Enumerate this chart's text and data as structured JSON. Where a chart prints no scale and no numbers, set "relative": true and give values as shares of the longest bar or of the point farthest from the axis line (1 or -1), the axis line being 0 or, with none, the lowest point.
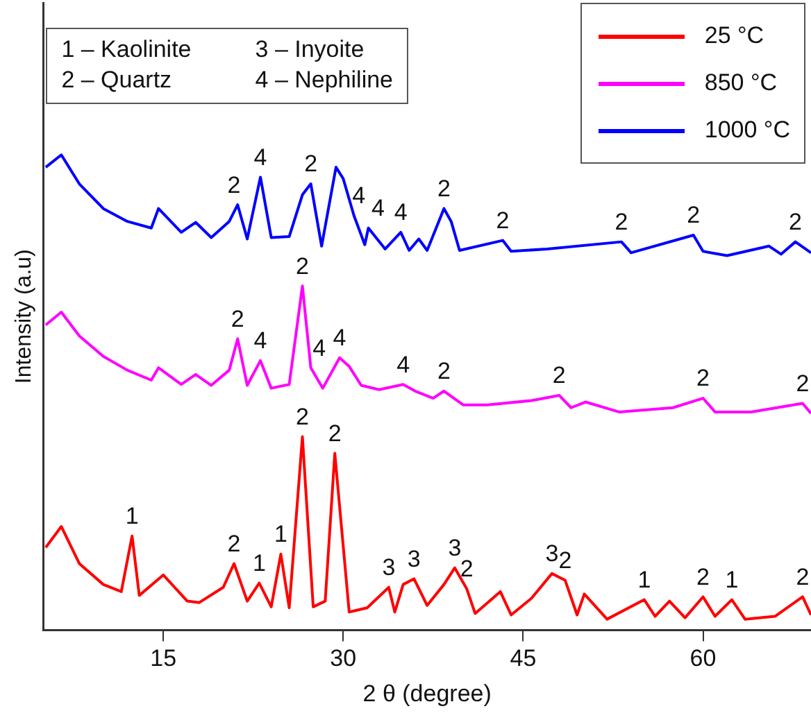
{
  "chart_data": {
    "type": "line",
    "xlabel": "2 θ (degree)",
    "ylabel": "Intensity (a.u)",
    "relative": true,
    "grid": false,
    "legend": "top right",
    "marker": "none",
    "xlim": [
      5,
      69
    ],
    "xticks": [
      15,
      30,
      45,
      60
    ],
    "series": [
      {
        "name": "25 °C",
        "color": "#ff0000",
        "x": [
          5.2,
          6.5,
          8,
          10,
          11.5,
          12.4,
          13,
          15,
          17,
          18,
          20,
          20.9,
          22,
          23,
          24,
          24.8,
          25.5,
          26.6,
          27.5,
          28.5,
          29.3,
          30.5,
          32,
          33.8,
          34.3,
          35,
          35.9,
          37,
          38.4,
          39.3,
          40.3,
          41,
          43.1,
          44,
          45.7,
          47.4,
          48.5,
          49.5,
          50.1,
          52,
          55.1,
          56,
          57.2,
          58.5,
          60,
          61,
          62.4,
          63.5,
          66,
          68.3,
          69
        ],
        "values": [
          0.174,
          0.218,
          0.14,
          0.096,
          0.081,
          0.198,
          0.073,
          0.116,
          0.061,
          0.058,
          0.09,
          0.14,
          0.061,
          0.099,
          0.049,
          0.16,
          0.047,
          0.407,
          0.049,
          0.061,
          0.372,
          0.038,
          0.047,
          0.09,
          0.038,
          0.096,
          0.108,
          0.052,
          0.096,
          0.131,
          0.087,
          0.035,
          0.081,
          0.032,
          0.067,
          0.119,
          0.105,
          0.032,
          0.076,
          0.023,
          0.064,
          0.029,
          0.061,
          0.026,
          0.07,
          0.029,
          0.064,
          0.023,
          0.029,
          0.07,
          0.032
        ]
      },
      {
        "name": "850 °C",
        "color": "#ff00ff",
        "x": [
          5.2,
          6.5,
          8,
          10,
          12,
          14,
          14.6,
          16.5,
          17.7,
          19,
          20.5,
          21.2,
          22,
          23.1,
          24,
          25.5,
          26.6,
          27.3,
          28.3,
          29.7,
          30.5,
          31.5,
          33,
          35,
          36,
          37.5,
          38.4,
          40,
          42,
          45.7,
          48,
          49,
          50.2,
          53,
          57.5,
          60,
          61,
          64,
          68.3,
          69
        ],
        "values": [
          0.642,
          0.669,
          0.619,
          0.576,
          0.547,
          0.526,
          0.552,
          0.517,
          0.538,
          0.515,
          0.547,
          0.613,
          0.515,
          0.567,
          0.509,
          0.517,
          0.724,
          0.552,
          0.509,
          0.573,
          0.555,
          0.515,
          0.506,
          0.517,
          0.503,
          0.488,
          0.503,
          0.474,
          0.474,
          0.483,
          0.494,
          0.468,
          0.48,
          0.459,
          0.468,
          0.488,
          0.459,
          0.459,
          0.477,
          0.456
        ]
      },
      {
        "name": "1000 °C",
        "color": "#0000ff",
        "x": [
          5.2,
          6.5,
          8,
          10,
          12,
          14,
          14.6,
          16.5,
          17.7,
          19,
          20.5,
          21.2,
          22,
          23.1,
          24,
          25.5,
          26.6,
          27.3,
          28.2,
          29.4,
          30,
          30.9,
          31.8,
          32.1,
          33.5,
          34.8,
          35.5,
          36.3,
          37,
          38.4,
          39,
          39.7,
          43.3,
          44,
          47,
          53.2,
          54,
          59.2,
          60,
          62,
          65.5,
          66.5,
          67.7,
          69
        ],
        "values": [
          0.974,
          1,
          0.939,
          0.887,
          0.86,
          0.846,
          0.887,
          0.837,
          0.858,
          0.826,
          0.86,
          0.895,
          0.823,
          0.953,
          0.826,
          0.828,
          0.916,
          0.939,
          0.808,
          0.974,
          0.95,
          0.872,
          0.811,
          0.846,
          0.802,
          0.837,
          0.799,
          0.823,
          0.799,
          0.887,
          0.86,
          0.799,
          0.82,
          0.797,
          0.802,
          0.817,
          0.794,
          0.831,
          0.797,
          0.788,
          0.808,
          0.791,
          0.817,
          0.794
        ]
      }
    ],
    "annotations": [
      "1 – Kaolinite",
      "2 – Quartz",
      "3 – Inyoite",
      "4 – Nephiline",
      {
        "text": "1",
        "x": 12.4,
        "y": 0.198
      },
      {
        "text": "2",
        "x": 20.9,
        "y": 0.14
      },
      {
        "text": "1",
        "x": 23,
        "y": 0.099
      },
      {
        "text": "1",
        "x": 24.8,
        "y": 0.16
      },
      {
        "text": "2",
        "x": 26.6,
        "y": 0.407
      },
      {
        "text": "2",
        "x": 29.3,
        "y": 0.372
      },
      {
        "text": "3",
        "x": 33.8,
        "y": 0.09
      },
      {
        "text": "3",
        "x": 35.9,
        "y": 0.108
      },
      {
        "text": "3",
        "x": 39.3,
        "y": 0.131
      },
      {
        "text": "2",
        "x": 40.3,
        "y": 0.087
      },
      {
        "text": "3",
        "x": 47.4,
        "y": 0.119
      },
      {
        "text": "2",
        "x": 48.5,
        "y": 0.105
      },
      {
        "text": "1",
        "x": 55.1,
        "y": 0.064
      },
      {
        "text": "2",
        "x": 60,
        "y": 0.07
      },
      {
        "text": "1",
        "x": 62.4,
        "y": 0.064
      },
      {
        "text": "2",
        "x": 68.3,
        "y": 0.07
      },
      {
        "text": "2",
        "x": 21.2,
        "y": 0.613
      },
      {
        "text": "4",
        "x": 23.1,
        "y": 0.567
      },
      {
        "text": "2",
        "x": 26.6,
        "y": 0.724
      },
      {
        "text": "4",
        "x": 28,
        "y": 0.552
      },
      {
        "text": "4",
        "x": 29.7,
        "y": 0.573
      },
      {
        "text": "4",
        "x": 35,
        "y": 0.517
      },
      {
        "text": "2",
        "x": 38.4,
        "y": 0.503
      },
      {
        "text": "2",
        "x": 48,
        "y": 0.494
      },
      {
        "text": "2",
        "x": 60,
        "y": 0.488
      },
      {
        "text": "2",
        "x": 68.3,
        "y": 0.477
      },
      {
        "text": "2",
        "x": 20.9,
        "y": 0.895
      },
      {
        "text": "4",
        "x": 23.1,
        "y": 0.953
      },
      {
        "text": "2",
        "x": 27.3,
        "y": 0.939
      },
      {
        "text": "4",
        "x": 31.3,
        "y": 0.872
      },
      {
        "text": "4",
        "x": 32.9,
        "y": 0.846
      },
      {
        "text": "4",
        "x": 34.8,
        "y": 0.837
      },
      {
        "text": "2",
        "x": 38.4,
        "y": 0.887
      },
      {
        "text": "2",
        "x": 43.3,
        "y": 0.82
      },
      {
        "text": "2",
        "x": 53.2,
        "y": 0.817
      },
      {
        "text": "2",
        "x": 59.2,
        "y": 0.831
      },
      {
        "text": "2",
        "x": 67.7,
        "y": 0.817
      }
    ]
  }
}
